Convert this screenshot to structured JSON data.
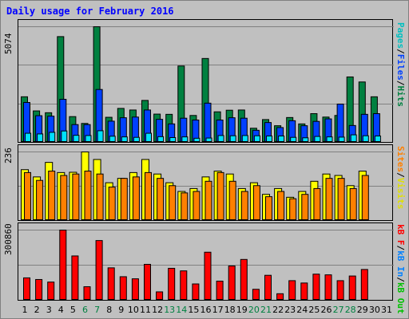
{
  "title": "Daily usage for February 2016",
  "colors": {
    "hits": "#008040",
    "files": "#0040ff",
    "pages": "#00e0ff",
    "visits": "#ffff00",
    "sites": "#ff8000",
    "kbf": "#ff0000",
    "kbin": "#0080ff",
    "kbout": "#00c000",
    "weekend_label": "#008040"
  },
  "labels": {
    "pages": "Pages",
    "files": "Files",
    "hits": "Hits",
    "visits": "Visits",
    "sites": "Sites",
    "kbf": "kB F",
    "kbin": "kB In",
    "kbout": "kB Out",
    "sep": "/"
  },
  "chart_data": [
    {
      "type": "bar",
      "title": "Hits / Files / Pages",
      "y_max_label": "5074",
      "ylim": [
        0,
        5074
      ],
      "grid": true,
      "categories": [
        1,
        2,
        3,
        4,
        5,
        6,
        7,
        8,
        9,
        10,
        11,
        12,
        13,
        14,
        15,
        16,
        17,
        18,
        19,
        20,
        21,
        22,
        23,
        24,
        25,
        26,
        27,
        28,
        29,
        30,
        31
      ],
      "series": [
        {
          "name": "Hits",
          "values": [
            2000,
            1380,
            1300,
            4640,
            1130,
            830,
            5074,
            1100,
            1490,
            1420,
            1840,
            1240,
            1230,
            3350,
            1180,
            3680,
            1340,
            1410,
            1420,
            620,
            1000,
            730,
            1090,
            810,
            1260,
            1110,
            1180,
            2870,
            2650,
            2000,
            0
          ]
        },
        {
          "name": "Files",
          "values": [
            1750,
            1170,
            1150,
            1890,
            780,
            780,
            2320,
            930,
            1080,
            1110,
            1420,
            1010,
            810,
            1060,
            980,
            1720,
            980,
            1080,
            1060,
            530,
            870,
            650,
            950,
            730,
            920,
            1030,
            1680,
            740,
            1230,
            1260,
            0
          ]
        },
        {
          "name": "Pages",
          "values": [
            400,
            370,
            440,
            500,
            310,
            300,
            510,
            270,
            240,
            220,
            400,
            250,
            210,
            240,
            180,
            190,
            300,
            290,
            300,
            290,
            280,
            280,
            220,
            200,
            260,
            240,
            230,
            330,
            290,
            280,
            0
          ]
        }
      ]
    },
    {
      "type": "bar",
      "title": "Visits / Sites",
      "y_max_label": "236",
      "ylim": [
        0,
        236
      ],
      "grid": true,
      "categories": [
        1,
        2,
        3,
        4,
        5,
        6,
        7,
        8,
        9,
        10,
        11,
        12,
        13,
        14,
        15,
        16,
        17,
        18,
        19,
        20,
        21,
        22,
        23,
        24,
        25,
        26,
        27,
        28,
        29,
        30,
        31
      ],
      "series": [
        {
          "name": "Visits",
          "values": [
            175,
            150,
            200,
            165,
            166,
            236,
            210,
            130,
            145,
            165,
            210,
            160,
            130,
            100,
            110,
            150,
            170,
            160,
            110,
            130,
            90,
            110,
            80,
            100,
            135,
            160,
            155,
            120,
            170,
            0,
            0
          ]
        },
        {
          "name": "Sites",
          "values": [
            165,
            138,
            170,
            155,
            160,
            170,
            160,
            115,
            145,
            150,
            165,
            145,
            120,
            95,
            100,
            135,
            165,
            135,
            100,
            120,
            82,
            100,
            75,
            90,
            110,
            145,
            145,
            110,
            155,
            0,
            0
          ]
        }
      ]
    },
    {
      "type": "bar",
      "title": "kB F / kB In / kB Out",
      "y_max_label": "300860",
      "ylim": [
        0,
        300860
      ],
      "grid": true,
      "categories": [
        1,
        2,
        3,
        4,
        5,
        6,
        7,
        8,
        9,
        10,
        11,
        12,
        13,
        14,
        15,
        16,
        17,
        18,
        19,
        20,
        21,
        22,
        23,
        24,
        25,
        26,
        27,
        28,
        29,
        30,
        31
      ],
      "series": [
        {
          "name": "kB F",
          "values": [
            96000,
            89000,
            78000,
            300860,
            190000,
            58000,
            256000,
            139000,
            101000,
            92000,
            154000,
            36000,
            137000,
            126000,
            70000,
            206000,
            82000,
            147000,
            175000,
            47000,
            107000,
            28000,
            84000,
            74000,
            112000,
            109000,
            84000,
            104000,
            132000,
            0,
            0
          ]
        }
      ]
    }
  ]
}
